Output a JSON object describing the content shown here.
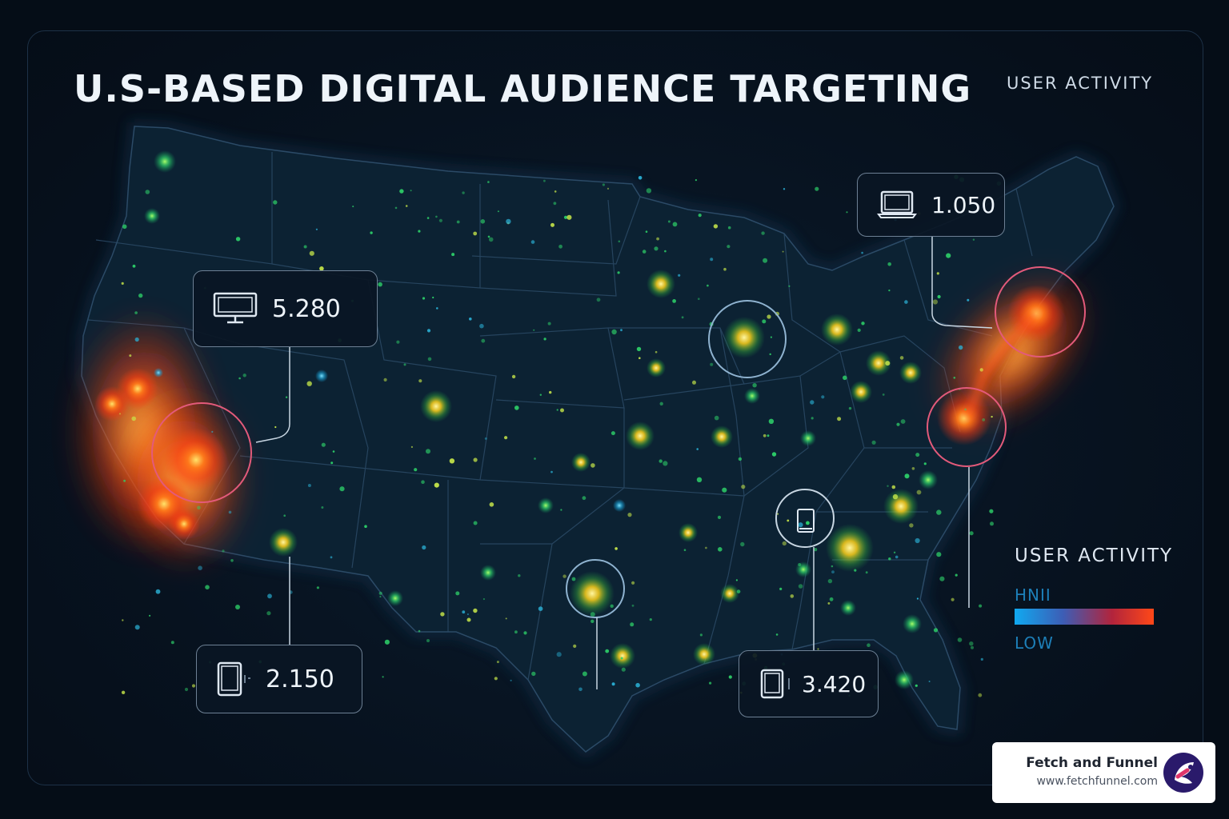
{
  "title": "U.S-BASED DIGITAL AUDIENCE TARGETING",
  "top_right_label": "USER ACTIVITY",
  "callouts": {
    "desktop": {
      "icon": "desktop-monitor-icon",
      "value": "5.280"
    },
    "laptop": {
      "icon": "laptop-icon",
      "value": "1.050"
    },
    "tablet_west": {
      "icon": "tablet-icon",
      "value": "2.150"
    },
    "tablet_south": {
      "icon": "tablet-icon",
      "value": "3.420"
    }
  },
  "legend": {
    "title": "USER ACTIVITY",
    "high_label": "HNII",
    "low_label": "LOW",
    "colors": {
      "low": "#10a9f0",
      "high": "#ff4818"
    }
  },
  "brand": {
    "name": "Fetch and Funnel",
    "url": "www.fetchfunnel.com",
    "logo_color": "#2a1a6b"
  },
  "colors": {
    "background": "#050d17",
    "map_fill": "#0c2233",
    "state_border": "#2b4a66",
    "hot": "#ff4818",
    "warm": "#f6c21a",
    "cool": "#2ed36a",
    "ring": "#e35a7a"
  }
}
